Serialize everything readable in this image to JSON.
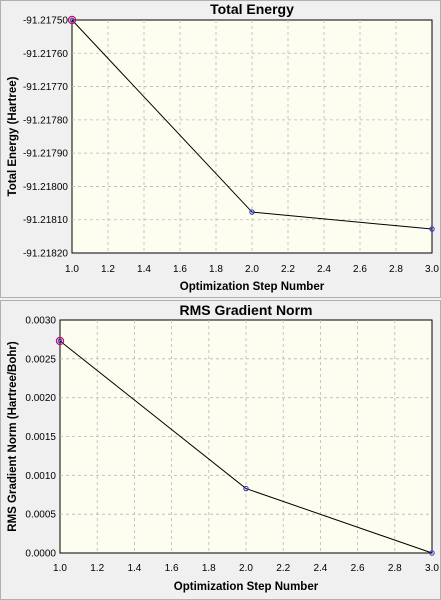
{
  "chart_data": [
    {
      "type": "line",
      "title": "Total Energy",
      "xlabel": "Optimization Step Number",
      "ylabel": "Total Energy (Hartree)",
      "x": [
        1.0,
        2.0,
        3.0
      ],
      "series": [
        {
          "values": [
            -91.2175,
            -91.218077,
            -91.218128
          ]
        }
      ],
      "xlim": [
        1.0,
        3.0
      ],
      "ylim": [
        -91.2182,
        -91.2175
      ],
      "xticks": [
        1.0,
        1.2,
        1.4,
        1.6,
        1.8,
        2.0,
        2.2,
        2.4,
        2.6,
        2.8,
        3.0
      ],
      "xtick_labels": [
        "1.0",
        "1.2",
        "1.4",
        "1.6",
        "1.8",
        "2.0",
        "2.2",
        "2.4",
        "2.6",
        "2.8",
        "3.0"
      ],
      "yticks": [
        -91.2175,
        -91.2176,
        -91.2177,
        -91.2178,
        -91.2179,
        -91.218,
        -91.2181,
        -91.2182
      ],
      "ytick_labels": [
        "-91.21750",
        "-91.21760",
        "-91.21770",
        "-91.21780",
        "-91.21790",
        "-91.21800",
        "-91.21810",
        "-91.21820"
      ],
      "grid": true,
      "highlighted_point_index": 0,
      "colors": {
        "background": "#fefef0",
        "line": "#000000",
        "marker": "#3030c8",
        "highlight": "#c01060"
      }
    },
    {
      "type": "line",
      "title": "RMS Gradient Norm",
      "xlabel": "Optimization Step Number",
      "ylabel": "RMS Gradient Norm (Hartree/Bohr)",
      "x": [
        1.0,
        2.0,
        3.0
      ],
      "series": [
        {
          "values": [
            0.00273,
            0.00083,
            0.0
          ]
        }
      ],
      "xlim": [
        1.0,
        3.0
      ],
      "ylim": [
        0.0,
        0.003
      ],
      "xticks": [
        1.0,
        1.2,
        1.4,
        1.6,
        1.8,
        2.0,
        2.2,
        2.4,
        2.6,
        2.8,
        3.0
      ],
      "xtick_labels": [
        "1.0",
        "1.2",
        "1.4",
        "1.6",
        "1.8",
        "2.0",
        "2.2",
        "2.4",
        "2.6",
        "2.8",
        "3.0"
      ],
      "yticks": [
        0.003,
        0.0025,
        0.002,
        0.0015,
        0.001,
        0.0005,
        0.0
      ],
      "ytick_labels": [
        "0.0030",
        "0.0025",
        "0.0020",
        "0.0015",
        "0.0010",
        "0.0005",
        "0.0000"
      ],
      "grid": true,
      "highlighted_point_index": 0,
      "colors": {
        "background": "#fefef0",
        "line": "#000000",
        "marker": "#3030c8",
        "highlight": "#c01060"
      }
    }
  ]
}
